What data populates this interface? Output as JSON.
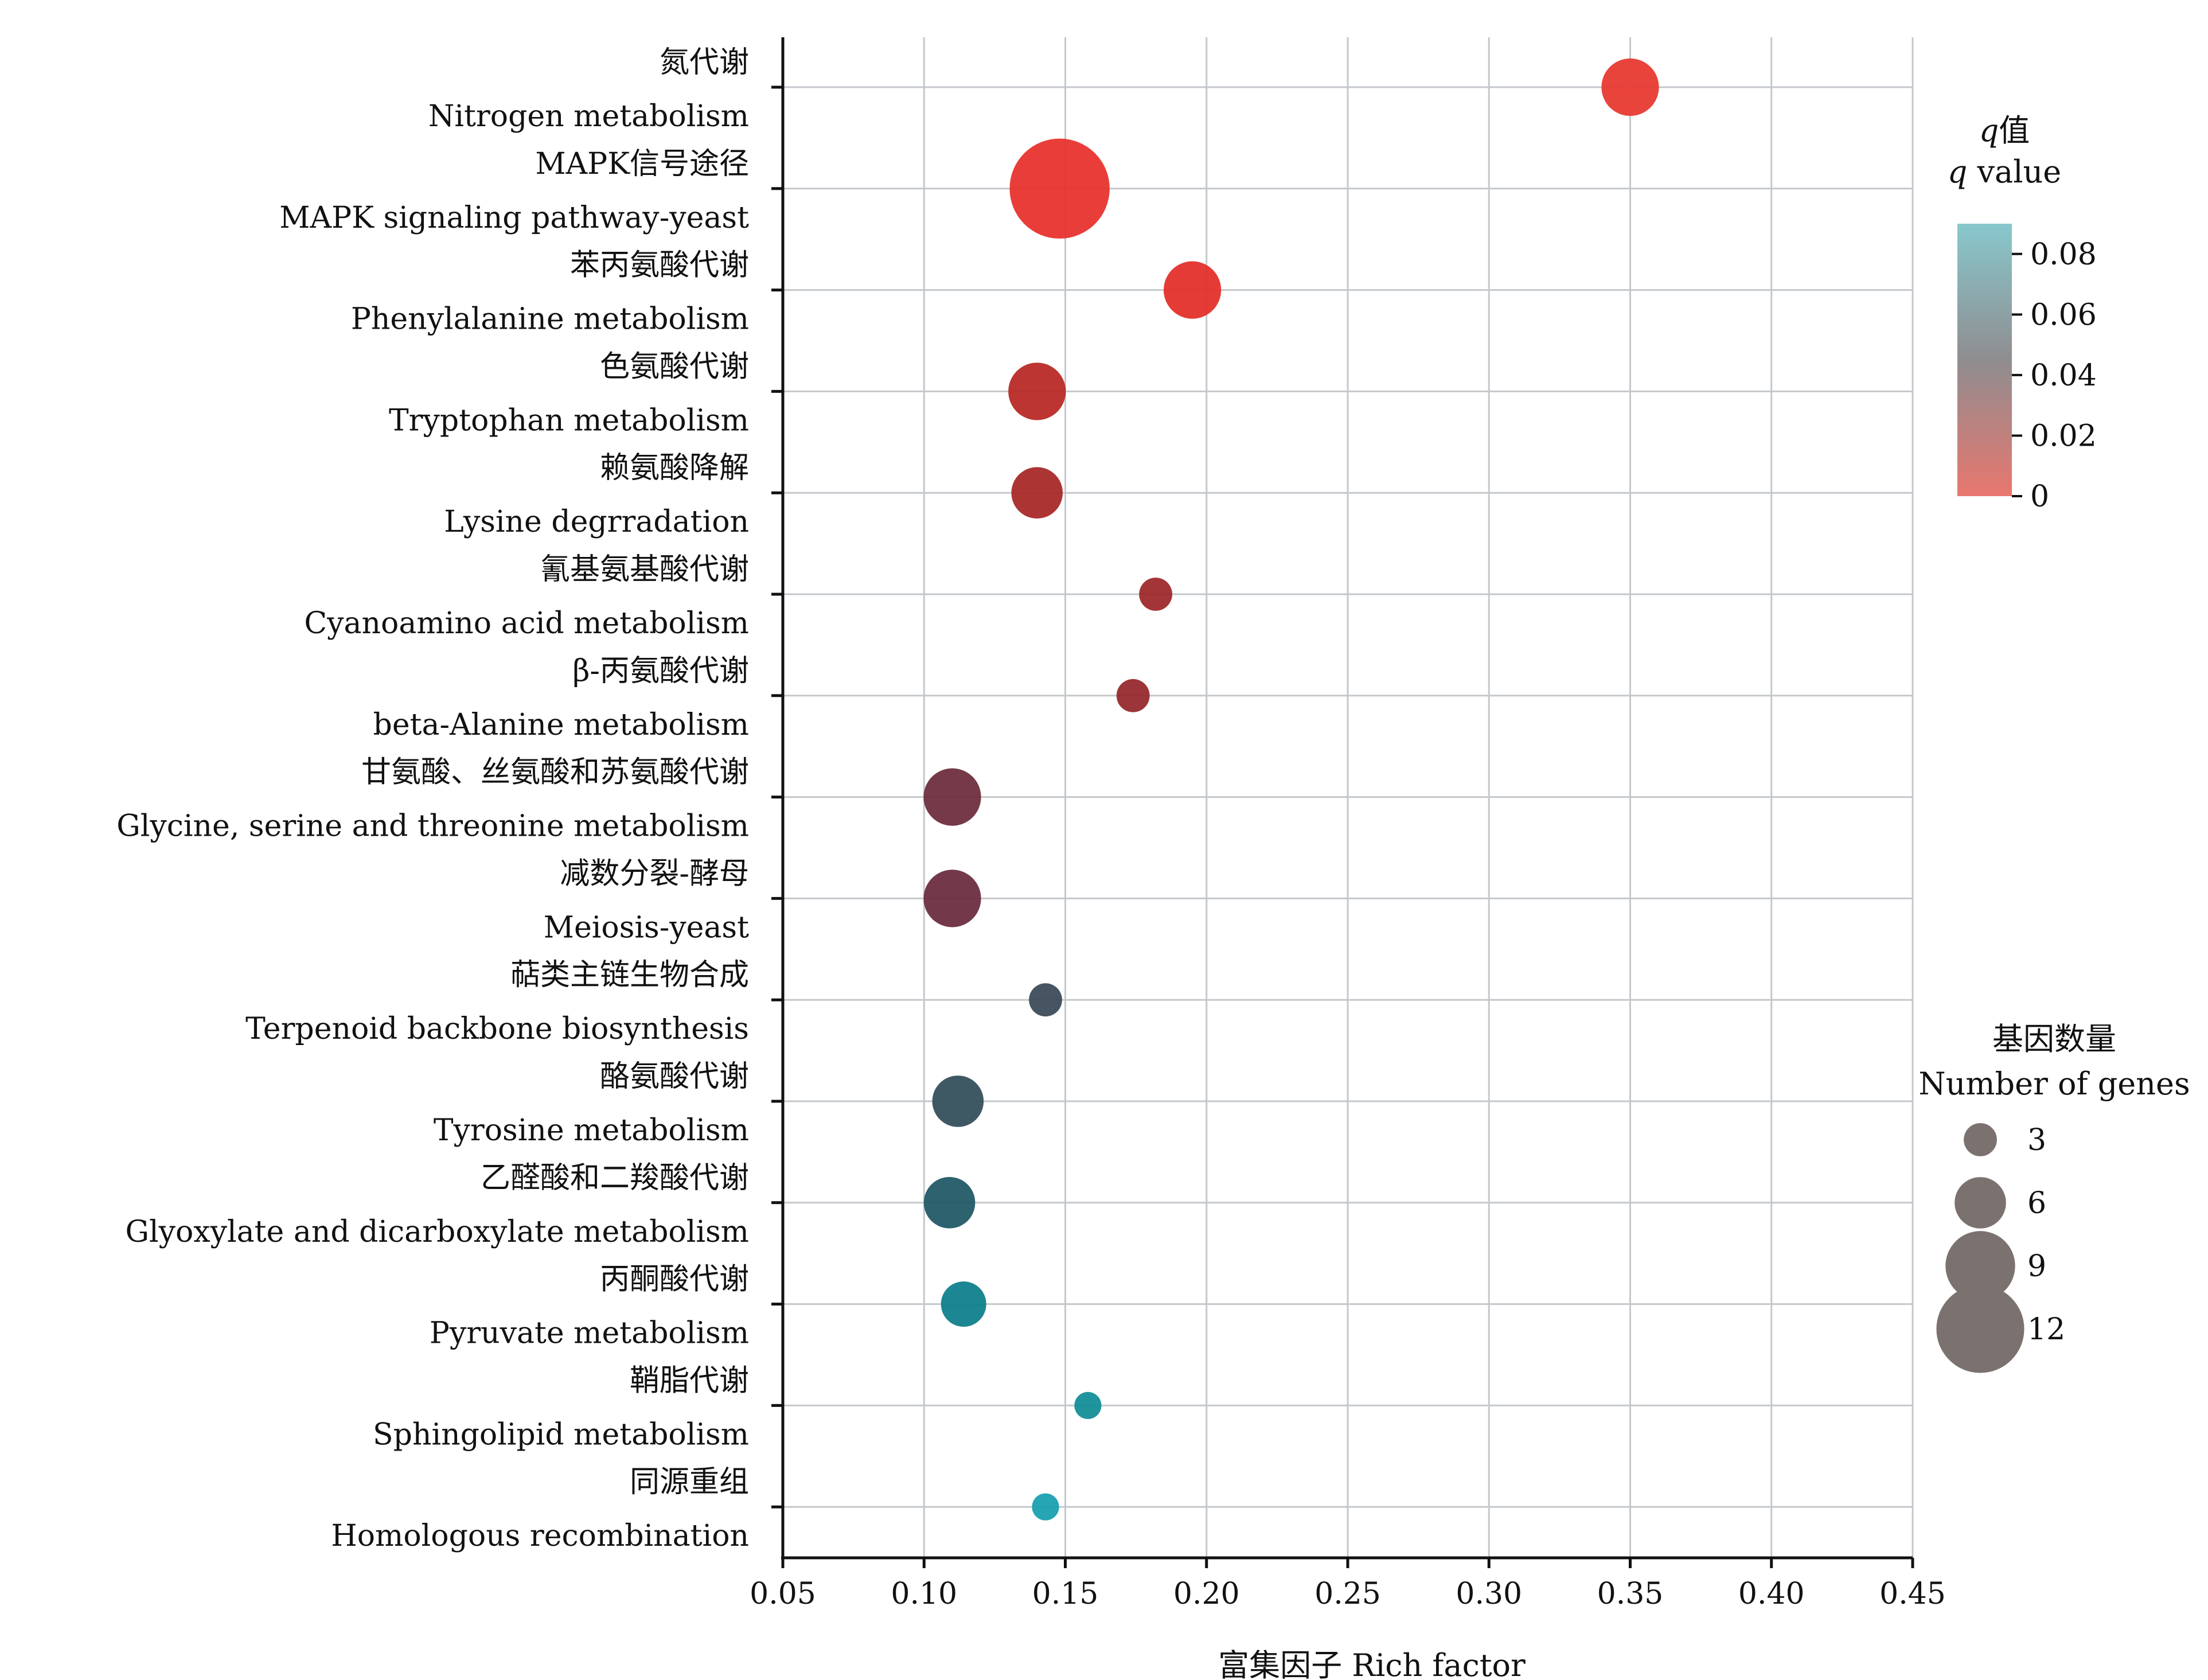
{
  "chart_data": {
    "type": "scatter",
    "xlabel": "富集因子 Rich factor",
    "xlim": [
      0.05,
      0.45
    ],
    "xticks": [
      "0.05",
      "0.10",
      "0.15",
      "0.20",
      "0.25",
      "0.30",
      "0.35",
      "0.40",
      "0.45"
    ],
    "grid": true,
    "categories": [
      {
        "zh": "氮代谢",
        "en": "Nitrogen metabolism"
      },
      {
        "zh": "MAPK信号途径",
        "en": "MAPK signaling pathway-yeast"
      },
      {
        "zh": "苯丙氨酸代谢",
        "en": "Phenylalanine metabolism"
      },
      {
        "zh": "色氨酸代谢",
        "en": "Tryptophan metabolism"
      },
      {
        "zh": "赖氨酸降解",
        "en": "Lysine degrradation"
      },
      {
        "zh": "氰基氨基酸代谢",
        "en": "Cyanoamino acid metabolism"
      },
      {
        "zh": "β-丙氨酸代谢",
        "en": "beta-Alanine metabolism"
      },
      {
        "zh": "甘氨酸、丝氨酸和苏氨酸代谢",
        "en": "Glycine, serine and threonine metabolism"
      },
      {
        "zh": "减数分裂-酵母",
        "en": "Meiosis-yeast"
      },
      {
        "zh": "萜类主链生物合成",
        "en": "Terpenoid backbone biosynthesis"
      },
      {
        "zh": "酪氨酸代谢",
        "en": "Tyrosine metabolism"
      },
      {
        "zh": "乙醛酸和二羧酸代谢",
        "en": "Glyoxylate and dicarboxylate metabolism"
      },
      {
        "zh": "丙酮酸代谢",
        "en": "Pyruvate metabolism"
      },
      {
        "zh": "鞘脂代谢",
        "en": "Sphingolipid metabolism"
      },
      {
        "zh": "同源重组",
        "en": "Homologous recombination"
      }
    ],
    "points": [
      {
        "rich_factor": 0.35,
        "genes": 7,
        "q_value": 0.0,
        "color": "#e83a32"
      },
      {
        "rich_factor": 0.148,
        "genes": 14,
        "q_value": 0.0,
        "color": "#e8332e"
      },
      {
        "rich_factor": 0.195,
        "genes": 7,
        "q_value": 0.001,
        "color": "#e3302b"
      },
      {
        "rich_factor": 0.14,
        "genes": 7,
        "q_value": 0.012,
        "color": "#b82a27"
      },
      {
        "rich_factor": 0.14,
        "genes": 6,
        "q_value": 0.016,
        "color": "#a82a29"
      },
      {
        "rich_factor": 0.182,
        "genes": 3,
        "q_value": 0.02,
        "color": "#9e2a2c"
      },
      {
        "rich_factor": 0.174,
        "genes": 3,
        "q_value": 0.021,
        "color": "#962a2e"
      },
      {
        "rich_factor": 0.11,
        "genes": 7,
        "q_value": 0.033,
        "color": "#6e2e3e"
      },
      {
        "rich_factor": 0.11,
        "genes": 7,
        "q_value": 0.034,
        "color": "#6b2e40"
      },
      {
        "rich_factor": 0.143,
        "genes": 3,
        "q_value": 0.058,
        "color": "#3d4b5a"
      },
      {
        "rich_factor": 0.112,
        "genes": 6,
        "q_value": 0.062,
        "color": "#35505c"
      },
      {
        "rich_factor": 0.109,
        "genes": 6,
        "q_value": 0.068,
        "color": "#225a66"
      },
      {
        "rich_factor": 0.114,
        "genes": 5,
        "q_value": 0.078,
        "color": "#10818c"
      },
      {
        "rich_factor": 0.158,
        "genes": 2,
        "q_value": 0.083,
        "color": "#148e98"
      },
      {
        "rich_factor": 0.143,
        "genes": 2,
        "q_value": 0.09,
        "color": "#1aa0b0"
      }
    ],
    "color_legend": {
      "title_italic": "q",
      "title_zh": "值",
      "title_en_italic": "q",
      "title_en": " value",
      "ticks": [
        "0.08",
        "0.06",
        "0.04",
        "0.02",
        "0"
      ],
      "tick_values": [
        0.08,
        0.06,
        0.04,
        0.02,
        0
      ],
      "range": [
        0,
        0.09
      ],
      "color_low": "#e8776e",
      "color_mid": "#8f8d90",
      "color_high": "#88c8cc"
    },
    "size_legend": {
      "title_zh": "基因数量",
      "title_en": "Number of genes",
      "values": [
        3,
        6,
        9,
        12
      ],
      "labels": [
        "3",
        "6",
        "9",
        "12"
      ],
      "color": "#7b7270"
    }
  }
}
